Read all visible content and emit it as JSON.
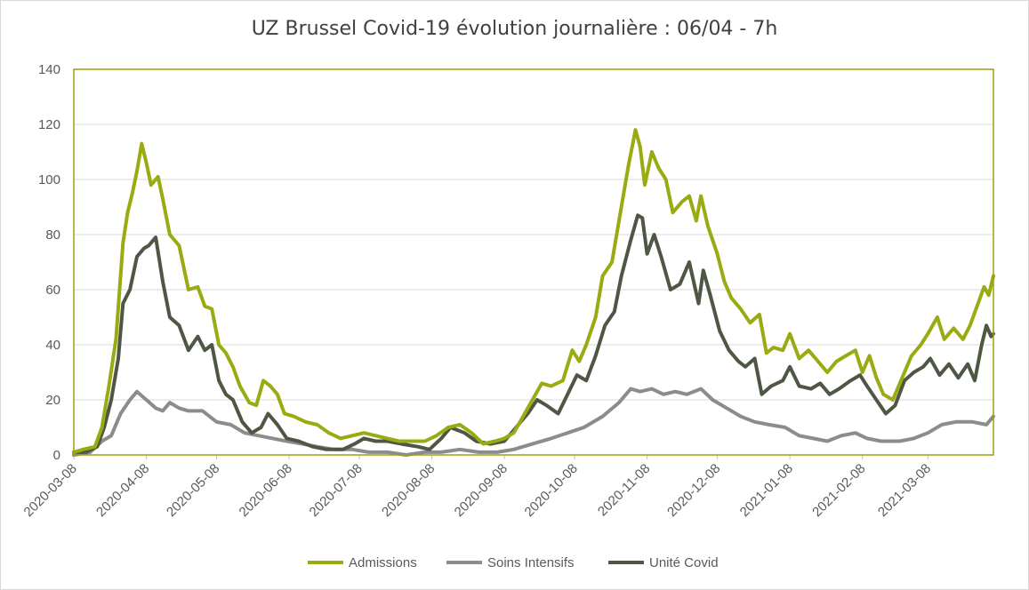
{
  "chart_data": {
    "type": "line",
    "title": "UZ Brussel Covid-19 évolution journalière : 06/04 - 7h",
    "xlabel": "",
    "ylabel": "",
    "ylim": [
      0,
      140
    ],
    "yticks": [
      0,
      20,
      40,
      60,
      80,
      100,
      120,
      140
    ],
    "xlim": [
      "2020-03-08",
      "2021-04-05"
    ],
    "xtick_labels": [
      "2020-03-08",
      "2020-04-08",
      "2020-05-08",
      "2020-06-08",
      "2020-07-08",
      "2020-08-08",
      "2020-09-08",
      "2020-10-08",
      "2020-11-08",
      "2020-12-08",
      "2021-01-08",
      "2021-02-08",
      "2021-03-08"
    ],
    "grid": "horizontal",
    "legend_position": "bottom",
    "colors": {
      "Admissions": "#9aab12",
      "Soins Intensifs": "#8c8c8c",
      "Unité Covid": "#4e5744",
      "plot_border": "#9aa00c"
    },
    "series": [
      {
        "name": "Admissions",
        "points": [
          [
            "2020-03-08",
            1
          ],
          [
            "2020-03-12",
            2
          ],
          [
            "2020-03-17",
            3
          ],
          [
            "2020-03-20",
            10
          ],
          [
            "2020-03-23",
            25
          ],
          [
            "2020-03-26",
            42
          ],
          [
            "2020-03-29",
            77
          ],
          [
            "2020-03-31",
            88
          ],
          [
            "2020-04-02",
            95
          ],
          [
            "2020-04-04",
            103
          ],
          [
            "2020-04-06",
            113
          ],
          [
            "2020-04-08",
            106
          ],
          [
            "2020-04-10",
            98
          ],
          [
            "2020-04-13",
            101
          ],
          [
            "2020-04-15",
            93
          ],
          [
            "2020-04-18",
            80
          ],
          [
            "2020-04-22",
            76
          ],
          [
            "2020-04-26",
            60
          ],
          [
            "2020-04-30",
            61
          ],
          [
            "2020-05-03",
            54
          ],
          [
            "2020-05-06",
            53
          ],
          [
            "2020-05-09",
            40
          ],
          [
            "2020-05-12",
            37
          ],
          [
            "2020-05-15",
            32
          ],
          [
            "2020-05-18",
            25
          ],
          [
            "2020-05-22",
            19
          ],
          [
            "2020-05-25",
            18
          ],
          [
            "2020-05-28",
            27
          ],
          [
            "2020-05-31",
            25
          ],
          [
            "2020-06-03",
            22
          ],
          [
            "2020-06-06",
            15
          ],
          [
            "2020-06-10",
            14
          ],
          [
            "2020-06-15",
            12
          ],
          [
            "2020-06-20",
            11
          ],
          [
            "2020-06-25",
            8
          ],
          [
            "2020-06-30",
            6
          ],
          [
            "2020-07-05",
            7
          ],
          [
            "2020-07-10",
            8
          ],
          [
            "2020-07-15",
            7
          ],
          [
            "2020-07-20",
            6
          ],
          [
            "2020-07-25",
            5
          ],
          [
            "2020-07-30",
            5
          ],
          [
            "2020-08-05",
            5
          ],
          [
            "2020-08-10",
            7
          ],
          [
            "2020-08-15",
            10
          ],
          [
            "2020-08-20",
            11
          ],
          [
            "2020-08-25",
            8
          ],
          [
            "2020-08-30",
            4
          ],
          [
            "2020-09-04",
            5
          ],
          [
            "2020-09-08",
            6
          ],
          [
            "2020-09-12",
            8
          ],
          [
            "2020-09-16",
            14
          ],
          [
            "2020-09-20",
            20
          ],
          [
            "2020-09-24",
            26
          ],
          [
            "2020-09-28",
            25
          ],
          [
            "2020-10-03",
            27
          ],
          [
            "2020-10-07",
            38
          ],
          [
            "2020-10-10",
            34
          ],
          [
            "2020-10-13",
            40
          ],
          [
            "2020-10-17",
            50
          ],
          [
            "2020-10-20",
            65
          ],
          [
            "2020-10-24",
            70
          ],
          [
            "2020-10-27",
            85
          ],
          [
            "2020-10-31",
            105
          ],
          [
            "2020-11-03",
            118
          ],
          [
            "2020-11-05",
            112
          ],
          [
            "2020-11-07",
            98
          ],
          [
            "2020-11-10",
            110
          ],
          [
            "2020-11-13",
            104
          ],
          [
            "2020-11-16",
            100
          ],
          [
            "2020-11-19",
            88
          ],
          [
            "2020-11-23",
            92
          ],
          [
            "2020-11-26",
            94
          ],
          [
            "2020-11-29",
            85
          ],
          [
            "2020-12-01",
            94
          ],
          [
            "2020-12-04",
            83
          ],
          [
            "2020-12-08",
            73
          ],
          [
            "2020-12-11",
            63
          ],
          [
            "2020-12-14",
            57
          ],
          [
            "2020-12-18",
            53
          ],
          [
            "2020-12-22",
            48
          ],
          [
            "2020-12-26",
            51
          ],
          [
            "2020-12-29",
            37
          ],
          [
            "2021-01-01",
            39
          ],
          [
            "2021-01-05",
            38
          ],
          [
            "2021-01-08",
            44
          ],
          [
            "2021-01-12",
            35
          ],
          [
            "2021-01-16",
            38
          ],
          [
            "2021-01-20",
            34
          ],
          [
            "2021-01-24",
            30
          ],
          [
            "2021-01-28",
            34
          ],
          [
            "2021-02-01",
            36
          ],
          [
            "2021-02-05",
            38
          ],
          [
            "2021-02-08",
            30
          ],
          [
            "2021-02-11",
            36
          ],
          [
            "2021-02-14",
            28
          ],
          [
            "2021-02-17",
            22
          ],
          [
            "2021-02-21",
            20
          ],
          [
            "2021-02-25",
            28
          ],
          [
            "2021-03-01",
            36
          ],
          [
            "2021-03-05",
            40
          ],
          [
            "2021-03-08",
            44
          ],
          [
            "2021-03-12",
            50
          ],
          [
            "2021-03-15",
            42
          ],
          [
            "2021-03-19",
            46
          ],
          [
            "2021-03-23",
            42
          ],
          [
            "2021-03-26",
            47
          ],
          [
            "2021-03-29",
            54
          ],
          [
            "2021-04-01",
            61
          ],
          [
            "2021-04-03",
            58
          ],
          [
            "2021-04-05",
            65
          ]
        ]
      },
      {
        "name": "Soins Intensifs",
        "points": [
          [
            "2020-03-08",
            0
          ],
          [
            "2020-03-15",
            1
          ],
          [
            "2020-03-20",
            5
          ],
          [
            "2020-03-24",
            7
          ],
          [
            "2020-03-28",
            15
          ],
          [
            "2020-04-01",
            20
          ],
          [
            "2020-04-04",
            23
          ],
          [
            "2020-04-08",
            20
          ],
          [
            "2020-04-12",
            17
          ],
          [
            "2020-04-15",
            16
          ],
          [
            "2020-04-18",
            19
          ],
          [
            "2020-04-22",
            17
          ],
          [
            "2020-04-26",
            16
          ],
          [
            "2020-05-02",
            16
          ],
          [
            "2020-05-08",
            12
          ],
          [
            "2020-05-14",
            11
          ],
          [
            "2020-05-20",
            8
          ],
          [
            "2020-05-26",
            7
          ],
          [
            "2020-06-01",
            6
          ],
          [
            "2020-06-07",
            5
          ],
          [
            "2020-06-14",
            4
          ],
          [
            "2020-06-20",
            3
          ],
          [
            "2020-06-27",
            2
          ],
          [
            "2020-07-05",
            2
          ],
          [
            "2020-07-12",
            1
          ],
          [
            "2020-07-20",
            1
          ],
          [
            "2020-07-28",
            0
          ],
          [
            "2020-08-05",
            1
          ],
          [
            "2020-08-12",
            1
          ],
          [
            "2020-08-20",
            2
          ],
          [
            "2020-08-28",
            1
          ],
          [
            "2020-09-05",
            1
          ],
          [
            "2020-09-12",
            2
          ],
          [
            "2020-09-20",
            4
          ],
          [
            "2020-09-28",
            6
          ],
          [
            "2020-10-05",
            8
          ],
          [
            "2020-10-12",
            10
          ],
          [
            "2020-10-20",
            14
          ],
          [
            "2020-10-27",
            19
          ],
          [
            "2020-11-01",
            24
          ],
          [
            "2020-11-05",
            23
          ],
          [
            "2020-11-10",
            24
          ],
          [
            "2020-11-15",
            22
          ],
          [
            "2020-11-20",
            23
          ],
          [
            "2020-11-25",
            22
          ],
          [
            "2020-12-01",
            24
          ],
          [
            "2020-12-06",
            20
          ],
          [
            "2020-12-12",
            17
          ],
          [
            "2020-12-18",
            14
          ],
          [
            "2020-12-24",
            12
          ],
          [
            "2020-12-30",
            11
          ],
          [
            "2021-01-06",
            10
          ],
          [
            "2021-01-12",
            7
          ],
          [
            "2021-01-18",
            6
          ],
          [
            "2021-01-24",
            5
          ],
          [
            "2021-01-30",
            7
          ],
          [
            "2021-02-05",
            8
          ],
          [
            "2021-02-10",
            6
          ],
          [
            "2021-02-16",
            5
          ],
          [
            "2021-02-24",
            5
          ],
          [
            "2021-03-02",
            6
          ],
          [
            "2021-03-08",
            8
          ],
          [
            "2021-03-14",
            11
          ],
          [
            "2021-03-20",
            12
          ],
          [
            "2021-03-27",
            12
          ],
          [
            "2021-04-02",
            11
          ],
          [
            "2021-04-05",
            14
          ]
        ]
      },
      {
        "name": "Unité Covid",
        "points": [
          [
            "2020-03-08",
            1
          ],
          [
            "2020-03-13",
            1
          ],
          [
            "2020-03-18",
            3
          ],
          [
            "2020-03-21",
            10
          ],
          [
            "2020-03-24",
            20
          ],
          [
            "2020-03-27",
            35
          ],
          [
            "2020-03-29",
            55
          ],
          [
            "2020-04-01",
            60
          ],
          [
            "2020-04-04",
            72
          ],
          [
            "2020-04-07",
            75
          ],
          [
            "2020-04-09",
            76
          ],
          [
            "2020-04-12",
            79
          ],
          [
            "2020-04-15",
            63
          ],
          [
            "2020-04-18",
            50
          ],
          [
            "2020-04-22",
            47
          ],
          [
            "2020-04-26",
            38
          ],
          [
            "2020-04-30",
            43
          ],
          [
            "2020-05-03",
            38
          ],
          [
            "2020-05-06",
            40
          ],
          [
            "2020-05-09",
            27
          ],
          [
            "2020-05-12",
            22
          ],
          [
            "2020-05-15",
            20
          ],
          [
            "2020-05-19",
            12
          ],
          [
            "2020-05-23",
            8
          ],
          [
            "2020-05-27",
            10
          ],
          [
            "2020-05-30",
            15
          ],
          [
            "2020-06-03",
            11
          ],
          [
            "2020-06-07",
            6
          ],
          [
            "2020-06-12",
            5
          ],
          [
            "2020-06-18",
            3
          ],
          [
            "2020-06-24",
            2
          ],
          [
            "2020-07-01",
            2
          ],
          [
            "2020-07-06",
            4
          ],
          [
            "2020-07-10",
            6
          ],
          [
            "2020-07-15",
            5
          ],
          [
            "2020-07-20",
            5
          ],
          [
            "2020-07-26",
            4
          ],
          [
            "2020-08-02",
            3
          ],
          [
            "2020-08-07",
            2
          ],
          [
            "2020-08-12",
            6
          ],
          [
            "2020-08-16",
            10
          ],
          [
            "2020-08-22",
            8
          ],
          [
            "2020-08-27",
            5
          ],
          [
            "2020-09-02",
            4
          ],
          [
            "2020-09-08",
            5
          ],
          [
            "2020-09-13",
            10
          ],
          [
            "2020-09-18",
            15
          ],
          [
            "2020-09-22",
            20
          ],
          [
            "2020-09-26",
            18
          ],
          [
            "2020-10-01",
            15
          ],
          [
            "2020-10-05",
            22
          ],
          [
            "2020-10-09",
            29
          ],
          [
            "2020-10-13",
            27
          ],
          [
            "2020-10-17",
            36
          ],
          [
            "2020-10-21",
            47
          ],
          [
            "2020-10-25",
            52
          ],
          [
            "2020-10-28",
            65
          ],
          [
            "2020-11-01",
            78
          ],
          [
            "2020-11-04",
            87
          ],
          [
            "2020-11-06",
            86
          ],
          [
            "2020-11-08",
            73
          ],
          [
            "2020-11-11",
            80
          ],
          [
            "2020-11-14",
            72
          ],
          [
            "2020-11-18",
            60
          ],
          [
            "2020-11-22",
            62
          ],
          [
            "2020-11-26",
            70
          ],
          [
            "2020-11-30",
            55
          ],
          [
            "2020-12-02",
            67
          ],
          [
            "2020-12-05",
            58
          ],
          [
            "2020-12-09",
            45
          ],
          [
            "2020-12-13",
            38
          ],
          [
            "2020-12-17",
            34
          ],
          [
            "2020-12-20",
            32
          ],
          [
            "2020-12-24",
            35
          ],
          [
            "2020-12-27",
            22
          ],
          [
            "2020-12-31",
            25
          ],
          [
            "2021-01-05",
            27
          ],
          [
            "2021-01-08",
            32
          ],
          [
            "2021-01-12",
            25
          ],
          [
            "2021-01-17",
            24
          ],
          [
            "2021-01-21",
            26
          ],
          [
            "2021-01-25",
            22
          ],
          [
            "2021-01-29",
            24
          ],
          [
            "2021-02-03",
            27
          ],
          [
            "2021-02-07",
            29
          ],
          [
            "2021-02-10",
            25
          ],
          [
            "2021-02-14",
            20
          ],
          [
            "2021-02-18",
            15
          ],
          [
            "2021-02-22",
            18
          ],
          [
            "2021-02-26",
            27
          ],
          [
            "2021-03-02",
            30
          ],
          [
            "2021-03-06",
            32
          ],
          [
            "2021-03-09",
            35
          ],
          [
            "2021-03-13",
            29
          ],
          [
            "2021-03-17",
            33
          ],
          [
            "2021-03-21",
            28
          ],
          [
            "2021-03-25",
            33
          ],
          [
            "2021-03-28",
            27
          ],
          [
            "2021-03-31",
            40
          ],
          [
            "2021-04-02",
            47
          ],
          [
            "2021-04-04",
            43
          ],
          [
            "2021-04-05",
            44
          ]
        ]
      }
    ]
  }
}
